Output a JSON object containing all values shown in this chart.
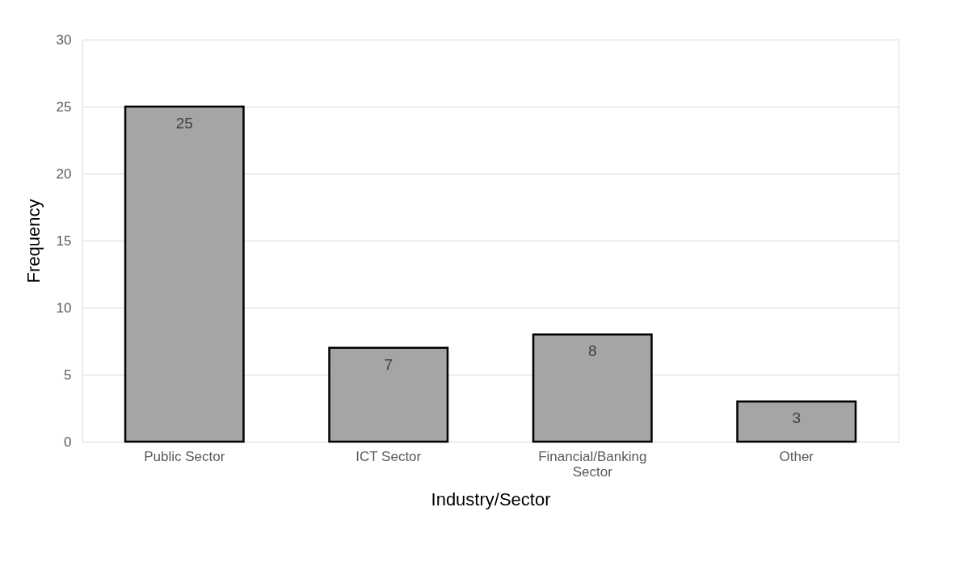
{
  "chart_data": {
    "type": "bar",
    "xlabel": "Industry/Sector",
    "ylabel": "Frequency",
    "categories": [
      "Public Sector",
      "ICT Sector",
      "Financial/Banking Sector",
      "Other"
    ],
    "values": [
      25,
      7,
      8,
      3
    ],
    "color": "#a5a5a5",
    "ylim": [
      0,
      30
    ],
    "yticks": [
      0,
      5,
      10,
      15,
      20,
      25,
      30
    ],
    "grid": "y",
    "data_labels": true
  }
}
